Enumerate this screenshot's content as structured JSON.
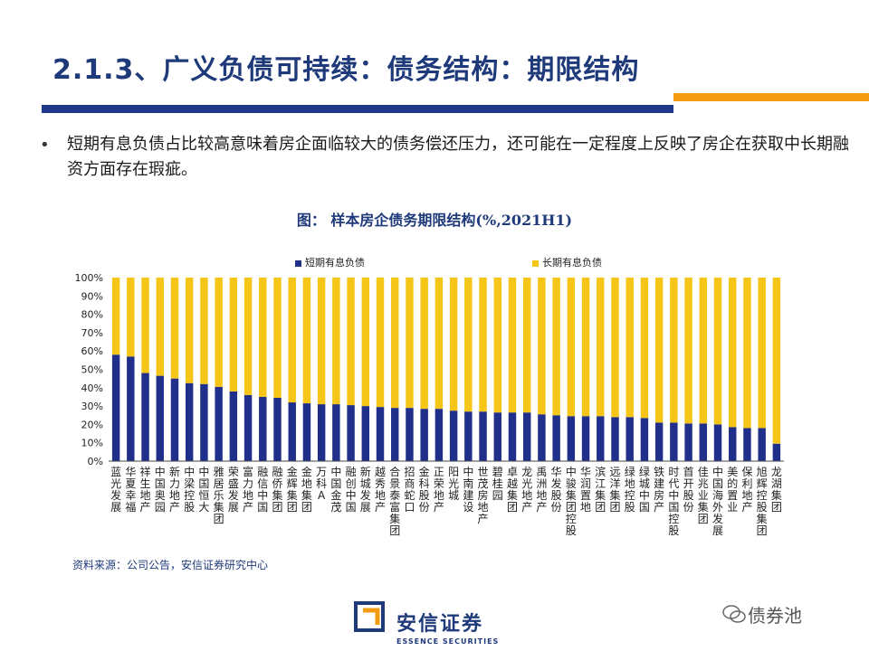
{
  "header": {
    "title": "2.1.3、广义负债可持续：债务结构：期限结构"
  },
  "bullet": {
    "marker": "•",
    "text": "短期有息负债占比较高意味着房企面临较大的债务偿还压力，还可能在一定程度上反映了房企在获取中长期融资方面存在瑕疵。"
  },
  "figure": {
    "title": "图： 样本房企债务期限结构(%,2021H1)"
  },
  "colors": {
    "short": "#1f2f8a",
    "long": "#f5c518",
    "accent_blue": "#1f3a8a",
    "accent_orange": "#f39c12"
  },
  "chart_data": {
    "type": "bar",
    "stacked": true,
    "percent": true,
    "categories": [
      "蓝光发展",
      "华夏幸福",
      "祥生地产",
      "中国奥园",
      "新力地产",
      "中梁控股",
      "中国恒大",
      "雅居乐集团",
      "荣盛发展",
      "富力地产",
      "融信中国",
      "融侨集团",
      "金辉集团",
      "金地集团",
      "万科A",
      "中国金茂",
      "融创中国",
      "新城发展",
      "越秀地产",
      "合景泰富集团",
      "招商蛇口",
      "金科股份",
      "正荣地产",
      "阳光城",
      "中南建设",
      "世茂房地产",
      "碧桂园",
      "卓越集团",
      "龙光地产",
      "禹洲地产",
      "华发股份",
      "中骏集团控股",
      "华润置地",
      "滨江集团",
      "远洋集团",
      "绿地控股",
      "绿城中国",
      "铁建房产",
      "时代中国控股",
      "首开股份",
      "佳兆业集团",
      "中国海外发展",
      "美的置业",
      "保利地产",
      "旭辉控股集团",
      "龙湖集团"
    ],
    "series": [
      {
        "name": "短期有息负债",
        "values": [
          58,
          57,
          48,
          46.5,
          45,
          42.5,
          42,
          40.5,
          38,
          36,
          35,
          34.5,
          32,
          31.5,
          31,
          31,
          30.5,
          30,
          29.5,
          29,
          29,
          28.5,
          28.5,
          27.5,
          27,
          27,
          26.5,
          26.5,
          26.5,
          25.5,
          25,
          24.5,
          24.5,
          24.5,
          24,
          24,
          23.5,
          21,
          21,
          20.5,
          20.5,
          20,
          18.5,
          18,
          18,
          9.5
        ]
      },
      {
        "name": "长期有息负债",
        "values": [
          42,
          43,
          52,
          53.5,
          55,
          57.5,
          58,
          59.5,
          62,
          64,
          65,
          65.5,
          68,
          68.5,
          69,
          69,
          69.5,
          70,
          70.5,
          71,
          71,
          71.5,
          71.5,
          72.5,
          73,
          73,
          73.5,
          73.5,
          73.5,
          74.5,
          75,
          75.5,
          75.5,
          75.5,
          76,
          76,
          76.5,
          79,
          79,
          79.5,
          79.5,
          80,
          81.5,
          82,
          82,
          90.5
        ]
      }
    ],
    "ylim": [
      0,
      100
    ],
    "yticks": [
      "0%",
      "10%",
      "20%",
      "30%",
      "40%",
      "50%",
      "60%",
      "70%",
      "80%",
      "90%",
      "100%"
    ]
  },
  "legend": [
    {
      "label": "短期有息负债",
      "color": "#1f2f8a"
    },
    {
      "label": "长期有息负债",
      "color": "#f5c518"
    }
  ],
  "source": {
    "text": "资料来源：公司公告，安信证券研究中心"
  },
  "brand": {
    "name_cn": "安信证券",
    "name_en": "ESSENCE SECURITIES"
  },
  "watermark": {
    "text": "债券池"
  }
}
